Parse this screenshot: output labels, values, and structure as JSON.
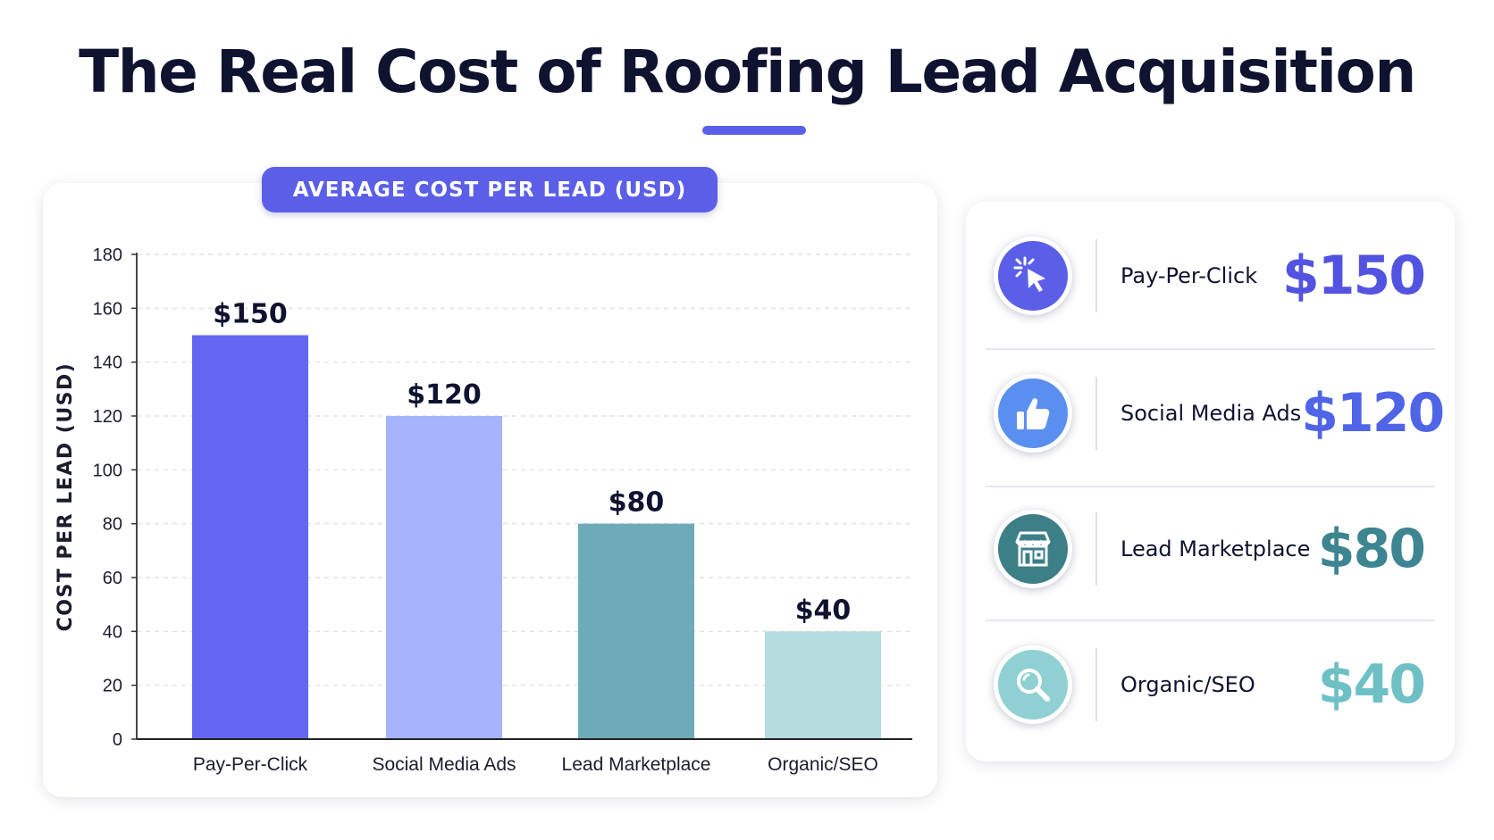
{
  "title": "The Real Cost of Roofing Lead Acquisition",
  "colors": {
    "accent": "#5b5fe8",
    "ppc": "#6366f1",
    "social": "#a5b4fc",
    "marketplace": "#6eabb8",
    "organic": "#b5dcdf",
    "ppc_text": "#5253e0",
    "social_text": "#4f64e6",
    "marketplace_text": "#3d8590",
    "organic_text": "#6fc0c5"
  },
  "chart_data": {
    "type": "bar",
    "title": "AVERAGE COST PER LEAD (USD)",
    "xlabel": "",
    "ylabel": "COST PER LEAD (USD)",
    "categories": [
      "Pay-Per-Click",
      "Social Media Ads",
      "Lead Marketplace",
      "Organic/SEO"
    ],
    "values": [
      150,
      120,
      80,
      40
    ],
    "data_labels": [
      "$150",
      "$120",
      "$80",
      "$40"
    ],
    "ylim": [
      0,
      180
    ],
    "yticks": [
      0,
      20,
      40,
      60,
      80,
      100,
      120,
      140,
      160,
      180
    ],
    "grid": true,
    "bar_colors": [
      "#6366f1",
      "#a5b4fc",
      "#6eabb8",
      "#b5dcdf"
    ]
  },
  "summary": {
    "items": [
      {
        "label": "Pay-Per-Click",
        "value": "$150",
        "icon": "cursor-click-icon"
      },
      {
        "label": "Social Media Ads",
        "value": "$120",
        "icon": "thumbs-up-icon"
      },
      {
        "label": "Lead Marketplace",
        "value": "$80",
        "icon": "storefront-icon"
      },
      {
        "label": "Organic/SEO",
        "value": "$40",
        "icon": "magnifier-icon"
      }
    ]
  }
}
